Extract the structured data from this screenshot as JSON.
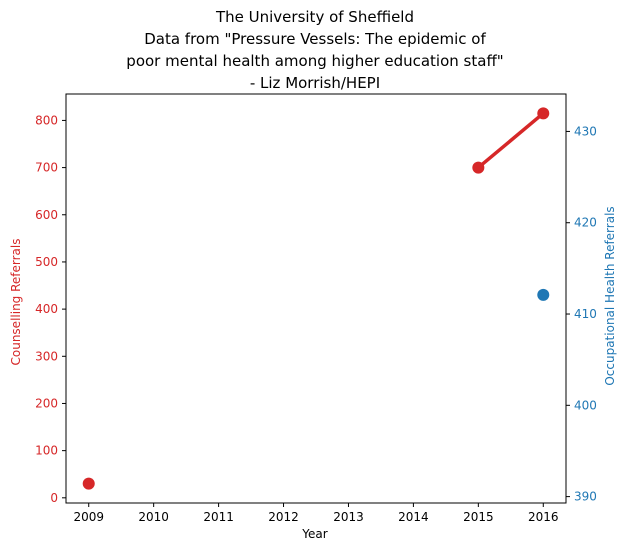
{
  "chart_data": {
    "type": "line",
    "title_lines": [
      "The University of Sheffield",
      "Data from \"Pressure Vessels: The epidemic of",
      "poor mental health among higher education staff\"",
      "- Liz Morrish/HEPI"
    ],
    "xlabel": "Year",
    "ylabel_left": "Counselling Referrals",
    "ylabel_right": "Occupational Health Referrals",
    "x_ticks": [
      "2009",
      "2010",
      "2011",
      "2012",
      "2013",
      "2014",
      "2015",
      "2016"
    ],
    "xlim": [
      2008.65,
      2016.35
    ],
    "y_left_ticks": [
      "0",
      "100",
      "200",
      "300",
      "400",
      "500",
      "600",
      "700",
      "800"
    ],
    "y_left_lim": [
      -11,
      856
    ],
    "y_right_ticks": [
      "390",
      "400",
      "410",
      "420",
      "430"
    ],
    "y_right_lim": [
      389.3,
      434.1
    ],
    "grid": false,
    "series": [
      {
        "axis": "left",
        "color": "#d62728",
        "points": [
          {
            "x": 2009,
            "y": 30
          },
          {
            "x": 2015,
            "y": 700
          },
          {
            "x": 2016,
            "y": 815
          }
        ],
        "segments": [
          [
            2015,
            2016
          ]
        ]
      },
      {
        "axis": "right",
        "color": "#1f77b4",
        "points": [
          {
            "x": 2016,
            "y": 412.1
          }
        ],
        "segments": []
      }
    ]
  }
}
